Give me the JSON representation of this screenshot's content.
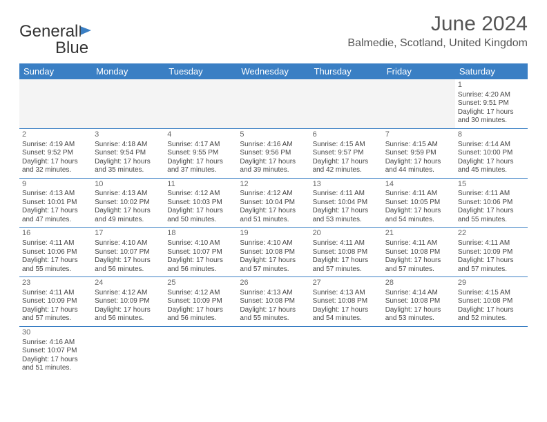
{
  "logo": {
    "text1": "General",
    "text2": "Blue"
  },
  "title": "June 2024",
  "location": "Balmedie, Scotland, United Kingdom",
  "colors": {
    "header_bg": "#3a7fc4",
    "header_text": "#ffffff",
    "page_bg": "#ffffff",
    "text": "#444444",
    "title_text": "#555555",
    "empty_bg": "#f4f4f4",
    "border": "#3a7fc4"
  },
  "day_headers": [
    "Sunday",
    "Monday",
    "Tuesday",
    "Wednesday",
    "Thursday",
    "Friday",
    "Saturday"
  ],
  "weeks": [
    [
      null,
      null,
      null,
      null,
      null,
      null,
      {
        "d": "1",
        "sr": "Sunrise: 4:20 AM",
        "ss": "Sunset: 9:51 PM",
        "dl1": "Daylight: 17 hours",
        "dl2": "and 30 minutes."
      }
    ],
    [
      {
        "d": "2",
        "sr": "Sunrise: 4:19 AM",
        "ss": "Sunset: 9:52 PM",
        "dl1": "Daylight: 17 hours",
        "dl2": "and 32 minutes."
      },
      {
        "d": "3",
        "sr": "Sunrise: 4:18 AM",
        "ss": "Sunset: 9:54 PM",
        "dl1": "Daylight: 17 hours",
        "dl2": "and 35 minutes."
      },
      {
        "d": "4",
        "sr": "Sunrise: 4:17 AM",
        "ss": "Sunset: 9:55 PM",
        "dl1": "Daylight: 17 hours",
        "dl2": "and 37 minutes."
      },
      {
        "d": "5",
        "sr": "Sunrise: 4:16 AM",
        "ss": "Sunset: 9:56 PM",
        "dl1": "Daylight: 17 hours",
        "dl2": "and 39 minutes."
      },
      {
        "d": "6",
        "sr": "Sunrise: 4:15 AM",
        "ss": "Sunset: 9:57 PM",
        "dl1": "Daylight: 17 hours",
        "dl2": "and 42 minutes."
      },
      {
        "d": "7",
        "sr": "Sunrise: 4:15 AM",
        "ss": "Sunset: 9:59 PM",
        "dl1": "Daylight: 17 hours",
        "dl2": "and 44 minutes."
      },
      {
        "d": "8",
        "sr": "Sunrise: 4:14 AM",
        "ss": "Sunset: 10:00 PM",
        "dl1": "Daylight: 17 hours",
        "dl2": "and 45 minutes."
      }
    ],
    [
      {
        "d": "9",
        "sr": "Sunrise: 4:13 AM",
        "ss": "Sunset: 10:01 PM",
        "dl1": "Daylight: 17 hours",
        "dl2": "and 47 minutes."
      },
      {
        "d": "10",
        "sr": "Sunrise: 4:13 AM",
        "ss": "Sunset: 10:02 PM",
        "dl1": "Daylight: 17 hours",
        "dl2": "and 49 minutes."
      },
      {
        "d": "11",
        "sr": "Sunrise: 4:12 AM",
        "ss": "Sunset: 10:03 PM",
        "dl1": "Daylight: 17 hours",
        "dl2": "and 50 minutes."
      },
      {
        "d": "12",
        "sr": "Sunrise: 4:12 AM",
        "ss": "Sunset: 10:04 PM",
        "dl1": "Daylight: 17 hours",
        "dl2": "and 51 minutes."
      },
      {
        "d": "13",
        "sr": "Sunrise: 4:11 AM",
        "ss": "Sunset: 10:04 PM",
        "dl1": "Daylight: 17 hours",
        "dl2": "and 53 minutes."
      },
      {
        "d": "14",
        "sr": "Sunrise: 4:11 AM",
        "ss": "Sunset: 10:05 PM",
        "dl1": "Daylight: 17 hours",
        "dl2": "and 54 minutes."
      },
      {
        "d": "15",
        "sr": "Sunrise: 4:11 AM",
        "ss": "Sunset: 10:06 PM",
        "dl1": "Daylight: 17 hours",
        "dl2": "and 55 minutes."
      }
    ],
    [
      {
        "d": "16",
        "sr": "Sunrise: 4:11 AM",
        "ss": "Sunset: 10:06 PM",
        "dl1": "Daylight: 17 hours",
        "dl2": "and 55 minutes."
      },
      {
        "d": "17",
        "sr": "Sunrise: 4:10 AM",
        "ss": "Sunset: 10:07 PM",
        "dl1": "Daylight: 17 hours",
        "dl2": "and 56 minutes."
      },
      {
        "d": "18",
        "sr": "Sunrise: 4:10 AM",
        "ss": "Sunset: 10:07 PM",
        "dl1": "Daylight: 17 hours",
        "dl2": "and 56 minutes."
      },
      {
        "d": "19",
        "sr": "Sunrise: 4:10 AM",
        "ss": "Sunset: 10:08 PM",
        "dl1": "Daylight: 17 hours",
        "dl2": "and 57 minutes."
      },
      {
        "d": "20",
        "sr": "Sunrise: 4:11 AM",
        "ss": "Sunset: 10:08 PM",
        "dl1": "Daylight: 17 hours",
        "dl2": "and 57 minutes."
      },
      {
        "d": "21",
        "sr": "Sunrise: 4:11 AM",
        "ss": "Sunset: 10:08 PM",
        "dl1": "Daylight: 17 hours",
        "dl2": "and 57 minutes."
      },
      {
        "d": "22",
        "sr": "Sunrise: 4:11 AM",
        "ss": "Sunset: 10:09 PM",
        "dl1": "Daylight: 17 hours",
        "dl2": "and 57 minutes."
      }
    ],
    [
      {
        "d": "23",
        "sr": "Sunrise: 4:11 AM",
        "ss": "Sunset: 10:09 PM",
        "dl1": "Daylight: 17 hours",
        "dl2": "and 57 minutes."
      },
      {
        "d": "24",
        "sr": "Sunrise: 4:12 AM",
        "ss": "Sunset: 10:09 PM",
        "dl1": "Daylight: 17 hours",
        "dl2": "and 56 minutes."
      },
      {
        "d": "25",
        "sr": "Sunrise: 4:12 AM",
        "ss": "Sunset: 10:09 PM",
        "dl1": "Daylight: 17 hours",
        "dl2": "and 56 minutes."
      },
      {
        "d": "26",
        "sr": "Sunrise: 4:13 AM",
        "ss": "Sunset: 10:08 PM",
        "dl1": "Daylight: 17 hours",
        "dl2": "and 55 minutes."
      },
      {
        "d": "27",
        "sr": "Sunrise: 4:13 AM",
        "ss": "Sunset: 10:08 PM",
        "dl1": "Daylight: 17 hours",
        "dl2": "and 54 minutes."
      },
      {
        "d": "28",
        "sr": "Sunrise: 4:14 AM",
        "ss": "Sunset: 10:08 PM",
        "dl1": "Daylight: 17 hours",
        "dl2": "and 53 minutes."
      },
      {
        "d": "29",
        "sr": "Sunrise: 4:15 AM",
        "ss": "Sunset: 10:08 PM",
        "dl1": "Daylight: 17 hours",
        "dl2": "and 52 minutes."
      }
    ],
    [
      {
        "d": "30",
        "sr": "Sunrise: 4:16 AM",
        "ss": "Sunset: 10:07 PM",
        "dl1": "Daylight: 17 hours",
        "dl2": "and 51 minutes."
      },
      null,
      null,
      null,
      null,
      null,
      null
    ]
  ]
}
